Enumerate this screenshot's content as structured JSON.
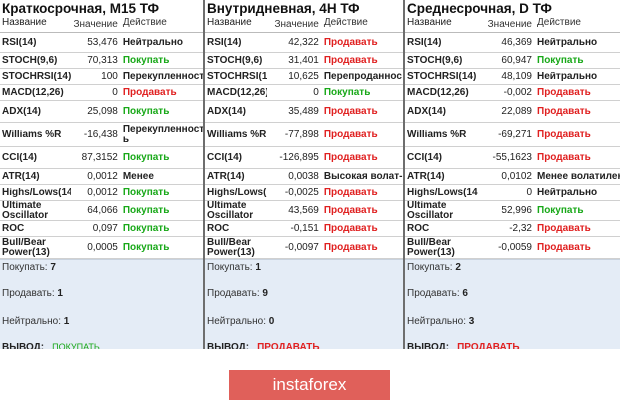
{
  "columns": {
    "name": "Название",
    "value": "Значение",
    "action": "Действие"
  },
  "summary_labels": {
    "buy": "Покупать:",
    "sell": "Продавать:",
    "neutral": "Нейтрально:",
    "verdict": "ВЫВОД:"
  },
  "panels": [
    {
      "title": "Краткосрочная, M15 ТФ",
      "rows": [
        {
          "name": "RSI(14)",
          "value": "53,476",
          "action": "Нейтрально",
          "type": "neutral"
        },
        {
          "name": "STOCH(9,6)",
          "value": "70,313",
          "action": "Покупать",
          "type": "buy"
        },
        {
          "name": "STOCHRSI(14)",
          "value": "100",
          "action": "Перекупленност",
          "type": "neutral"
        },
        {
          "name": "MACD(12,26)",
          "value": "0",
          "action": "Продавать",
          "type": "sell"
        },
        {
          "name": "ADX(14)",
          "value": "25,098",
          "action": "Покупать",
          "type": "buy"
        },
        {
          "name": "Williams %R",
          "value": "-16,438",
          "action": "Перекупленност ь",
          "type": "neutral"
        },
        {
          "name": "CCI(14)",
          "value": "87,3152",
          "action": "Покупать",
          "type": "buy"
        },
        {
          "name": "ATR(14)",
          "value": "0,0012",
          "action": "Менее",
          "type": "neutral"
        },
        {
          "name": "Highs/Lows(14",
          "value": "0,0012",
          "action": "Покупать",
          "type": "buy"
        },
        {
          "name": "Ultimate Oscillator",
          "value": "64,066",
          "action": "Покупать",
          "type": "buy"
        },
        {
          "name": "ROC",
          "value": "0,097",
          "action": "Покупать",
          "type": "buy"
        },
        {
          "name": "Bull/Bear Power(13)",
          "value": "0,0005",
          "action": "Покупать",
          "type": "buy"
        }
      ],
      "summary": {
        "buy": "7",
        "sell": "1",
        "neutral": "1",
        "verdict": "ПОКУПАТЬ",
        "verdict_type": "buy"
      }
    },
    {
      "title": "Внутридневная, 4H ТФ",
      "rows": [
        {
          "name": "RSI(14)",
          "value": "42,322",
          "action": "Продавать",
          "type": "sell"
        },
        {
          "name": "STOCH(9,6)",
          "value": "31,401",
          "action": "Продавать",
          "type": "sell"
        },
        {
          "name": "STOCHRSI(1",
          "value": "10,625",
          "action": "Перепроданнос",
          "type": "neutral"
        },
        {
          "name": "MACD(12,26)",
          "value": "0",
          "action": "Покупать",
          "type": "buy"
        },
        {
          "name": "ADX(14)",
          "value": "35,489",
          "action": "Продавать",
          "type": "sell"
        },
        {
          "name": "Williams %R",
          "value": "-77,898",
          "action": "Продавать",
          "type": "sell"
        },
        {
          "name": "CCI(14)",
          "value": "-126,895",
          "action": "Продавать",
          "type": "sell"
        },
        {
          "name": "ATR(14)",
          "value": "0,0038",
          "action": "Высокая волат-",
          "type": "neutral"
        },
        {
          "name": "Highs/Lows(",
          "value": "-0,0025",
          "action": "Продавать",
          "type": "sell"
        },
        {
          "name": "Ultimate Oscillator",
          "value": "43,569",
          "action": "Продавать",
          "type": "sell"
        },
        {
          "name": "ROC",
          "value": "-0,151",
          "action": "Продавать",
          "type": "sell"
        },
        {
          "name": "Bull/Bear Power(13)",
          "value": "-0,0097",
          "action": "Продавать",
          "type": "sell"
        }
      ],
      "summary": {
        "buy": "1",
        "sell": "9",
        "neutral": "0",
        "verdict": "ПРОДАВАТЬ",
        "verdict_type": "sell"
      }
    },
    {
      "title": "Среднесрочная, D ТФ",
      "rows": [
        {
          "name": "RSI(14)",
          "value": "46,369",
          "action": "Нейтрально",
          "type": "neutral"
        },
        {
          "name": "STOCH(9,6)",
          "value": "60,947",
          "action": "Покупать",
          "type": "buy"
        },
        {
          "name": "STOCHRSI(14)",
          "value": "48,109",
          "action": "Нейтрально",
          "type": "neutral"
        },
        {
          "name": "MACD(12,26)",
          "value": "-0,002",
          "action": "Продавать",
          "type": "sell"
        },
        {
          "name": "ADX(14)",
          "value": "22,089",
          "action": "Продавать",
          "type": "sell"
        },
        {
          "name": "Williams %R",
          "value": "-69,271",
          "action": "Продавать",
          "type": "sell"
        },
        {
          "name": "CCI(14)",
          "value": "-55,1623",
          "action": "Продавать",
          "type": "sell"
        },
        {
          "name": "ATR(14)",
          "value": "0,0102",
          "action": "Менее волатилен",
          "type": "neutral"
        },
        {
          "name": "Highs/Lows(14",
          "value": "0",
          "action": "Нейтрально",
          "type": "neutral"
        },
        {
          "name": "Ultimate Oscillator",
          "value": "52,996",
          "action": "Покупать",
          "type": "buy"
        },
        {
          "name": "ROC",
          "value": "-2,32",
          "action": "Продавать",
          "type": "sell"
        },
        {
          "name": "Bull/Bear Power(13)",
          "value": "-0,0059",
          "action": "Продавать",
          "type": "sell"
        }
      ],
      "summary": {
        "buy": "2",
        "sell": "6",
        "neutral": "3",
        "verdict": "ПРОДАВАТЬ",
        "verdict_type": "sell"
      }
    }
  ],
  "logo": {
    "text": "instaforex"
  }
}
